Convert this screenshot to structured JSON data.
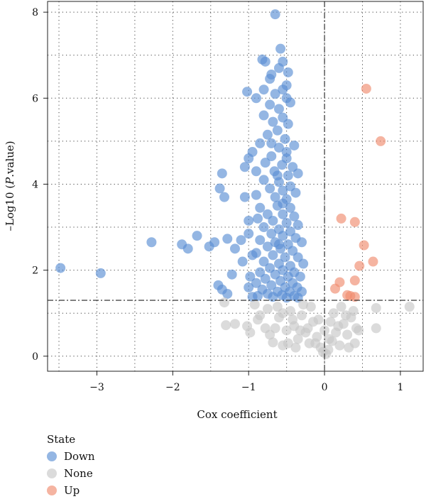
{
  "chart_data": {
    "type": "scatter",
    "title": "",
    "xlabel": "Cox coefficient",
    "ylabel_prefix": "–Log10 (",
    "ylabel_italic": "P",
    "ylabel_suffix": ".value)",
    "xlim": [
      -3.65,
      1.3
    ],
    "ylim": [
      -0.35,
      8.25
    ],
    "xticks": [
      -3,
      -2,
      -1,
      0,
      1
    ],
    "yticks": [
      0,
      2,
      4,
      6,
      8
    ],
    "xtick_labels": [
      "−3",
      "−2",
      "−1",
      "0",
      "1"
    ],
    "ytick_labels": [
      "0",
      "2",
      "4",
      "6",
      "8"
    ],
    "grid": "dotted",
    "threshold_y": 1.3,
    "threshold_x": 0,
    "legend_title": "State",
    "legend_position": "bottom-left",
    "series": [
      {
        "name": "Down",
        "color": "#5b8fd4",
        "points": [
          [
            -0.65,
            7.95
          ],
          [
            -0.58,
            7.15
          ],
          [
            -0.55,
            6.85
          ],
          [
            -0.82,
            6.9
          ],
          [
            -0.78,
            6.85
          ],
          [
            -0.6,
            6.7
          ],
          [
            -0.7,
            6.55
          ],
          [
            -0.48,
            6.6
          ],
          [
            -0.72,
            6.45
          ],
          [
            -0.5,
            6.3
          ],
          [
            -1.02,
            6.15
          ],
          [
            -0.8,
            6.2
          ],
          [
            -0.65,
            6.1
          ],
          [
            -0.5,
            6.0
          ],
          [
            -0.55,
            6.2
          ],
          [
            -0.9,
            6.0
          ],
          [
            -0.72,
            5.85
          ],
          [
            -0.6,
            5.75
          ],
          [
            -0.45,
            5.9
          ],
          [
            -0.8,
            5.6
          ],
          [
            -0.55,
            5.55
          ],
          [
            -0.68,
            5.45
          ],
          [
            -0.48,
            5.4
          ],
          [
            -0.62,
            5.25
          ],
          [
            -0.75,
            5.15
          ],
          [
            -0.52,
            5.05
          ],
          [
            -0.85,
            4.95
          ],
          [
            -0.4,
            4.9
          ],
          [
            -0.6,
            4.85
          ],
          [
            -0.95,
            4.75
          ],
          [
            -0.7,
            4.65
          ],
          [
            -0.5,
            4.6
          ],
          [
            -0.78,
            4.5
          ],
          [
            -0.56,
            4.45
          ],
          [
            -0.42,
            4.4
          ],
          [
            -1.0,
            4.6
          ],
          [
            -1.05,
            4.4
          ],
          [
            -0.9,
            4.3
          ],
          [
            -0.66,
            4.3
          ],
          [
            -0.48,
            4.2
          ],
          [
            -0.35,
            4.25
          ],
          [
            -0.8,
            4.1
          ],
          [
            -0.6,
            4.05
          ],
          [
            -0.45,
            3.95
          ],
          [
            -0.72,
            3.9
          ],
          [
            -0.55,
            3.85
          ],
          [
            -0.38,
            3.8
          ],
          [
            -0.9,
            3.75
          ],
          [
            -0.65,
            3.7
          ],
          [
            -0.5,
            3.65
          ],
          [
            -1.05,
            3.7
          ],
          [
            -1.35,
            4.25
          ],
          [
            -1.38,
            3.9
          ],
          [
            -1.32,
            3.7
          ],
          [
            -0.85,
            3.45
          ],
          [
            -0.62,
            3.5
          ],
          [
            -0.45,
            3.45
          ],
          [
            -0.75,
            3.3
          ],
          [
            -0.55,
            3.3
          ],
          [
            -0.4,
            3.25
          ],
          [
            -0.88,
            3.2
          ],
          [
            -0.68,
            3.15
          ],
          [
            -0.5,
            3.1
          ],
          [
            -0.35,
            3.05
          ],
          [
            -1.0,
            3.15
          ],
          [
            -0.8,
            3.0
          ],
          [
            -0.6,
            2.95
          ],
          [
            -0.45,
            2.9
          ],
          [
            -0.7,
            2.85
          ],
          [
            -1.0,
            2.85
          ],
          [
            -0.55,
            2.8
          ],
          [
            -0.38,
            2.75
          ],
          [
            -0.85,
            2.7
          ],
          [
            -0.65,
            2.65
          ],
          [
            -0.48,
            2.6
          ],
          [
            -0.3,
            2.65
          ],
          [
            -1.1,
            2.7
          ],
          [
            -0.75,
            2.55
          ],
          [
            -0.58,
            2.5
          ],
          [
            -0.42,
            2.45
          ],
          [
            -0.9,
            2.4
          ],
          [
            -0.68,
            2.35
          ],
          [
            -0.52,
            2.3
          ],
          [
            -0.35,
            2.3
          ],
          [
            -0.8,
            2.2
          ],
          [
            -0.6,
            2.15
          ],
          [
            -0.45,
            2.1
          ],
          [
            -0.28,
            2.15
          ],
          [
            -0.95,
            2.35
          ],
          [
            -0.72,
            2.05
          ],
          [
            -0.55,
            2.0
          ],
          [
            -0.4,
            1.95
          ],
          [
            -0.85,
            1.95
          ],
          [
            -0.65,
            1.9
          ],
          [
            -0.48,
            1.85
          ],
          [
            -0.32,
            1.85
          ],
          [
            -0.78,
            1.8
          ],
          [
            -0.58,
            1.75
          ],
          [
            -0.42,
            1.7
          ],
          [
            -0.9,
            1.7
          ],
          [
            -0.7,
            1.65
          ],
          [
            -0.52,
            1.6
          ],
          [
            -0.36,
            1.6
          ],
          [
            -0.82,
            1.55
          ],
          [
            -0.62,
            1.5
          ],
          [
            -0.46,
            1.5
          ],
          [
            -0.3,
            1.5
          ],
          [
            -0.75,
            1.45
          ],
          [
            -0.56,
            1.42
          ],
          [
            -0.4,
            1.4
          ],
          [
            -0.88,
            1.4
          ],
          [
            -0.68,
            1.38
          ],
          [
            -0.5,
            1.36
          ],
          [
            -0.35,
            1.36
          ],
          [
            -0.95,
            1.38
          ],
          [
            -0.6,
            2.6
          ],
          [
            -0.55,
            3.55
          ],
          [
            -0.5,
            4.75
          ],
          [
            -0.7,
            4.95
          ],
          [
            -0.62,
            4.2
          ],
          [
            -3.48,
            2.05
          ],
          [
            -2.95,
            1.93
          ],
          [
            -2.28,
            2.65
          ],
          [
            -1.88,
            2.6
          ],
          [
            -1.8,
            2.5
          ],
          [
            -1.68,
            2.8
          ],
          [
            -1.52,
            2.55
          ],
          [
            -1.45,
            2.65
          ],
          [
            -1.28,
            2.73
          ],
          [
            -1.18,
            2.5
          ],
          [
            -1.22,
            1.9
          ],
          [
            -1.4,
            1.65
          ],
          [
            -1.35,
            1.55
          ],
          [
            -1.28,
            1.45
          ],
          [
            -1.08,
            2.2
          ],
          [
            -1.0,
            1.6
          ],
          [
            -0.98,
            1.85
          ]
        ]
      },
      {
        "name": "None",
        "color": "#c8c8c8",
        "points": [
          [
            -1.32,
            1.25
          ],
          [
            -1.3,
            0.72
          ],
          [
            -1.18,
            0.75
          ],
          [
            -1.02,
            0.7
          ],
          [
            -0.98,
            0.55
          ],
          [
            -0.92,
            1.2
          ],
          [
            -0.85,
            0.95
          ],
          [
            -0.72,
            0.5
          ],
          [
            -0.68,
            0.32
          ],
          [
            -0.6,
            0.9
          ],
          [
            -0.55,
            0.25
          ],
          [
            -0.5,
            0.6
          ],
          [
            -0.45,
            1.05
          ],
          [
            -0.4,
            0.7
          ],
          [
            -0.35,
            0.4
          ],
          [
            -0.3,
            0.95
          ],
          [
            -0.25,
            0.55
          ],
          [
            -0.2,
            0.3
          ],
          [
            -0.15,
            0.8
          ],
          [
            -0.1,
            0.45
          ],
          [
            -0.05,
            0.2
          ],
          [
            -0.02,
            0.1
          ],
          [
            0.02,
            0.05
          ],
          [
            0.05,
            0.15
          ],
          [
            0.1,
            0.35
          ],
          [
            0.15,
            0.55
          ],
          [
            0.2,
            0.25
          ],
          [
            0.25,
            0.75
          ],
          [
            0.3,
            0.5
          ],
          [
            0.35,
            0.9
          ],
          [
            0.4,
            0.3
          ],
          [
            0.45,
            0.6
          ],
          [
            0.12,
            1.0
          ],
          [
            0.22,
            1.15
          ],
          [
            0.28,
            0.95
          ],
          [
            -0.62,
            1.15
          ],
          [
            -0.75,
            1.1
          ],
          [
            -0.88,
            0.85
          ],
          [
            -0.42,
            0.85
          ],
          [
            -0.28,
            1.2
          ],
          [
            -0.18,
            1.15
          ],
          [
            -0.08,
            0.85
          ],
          [
            0.0,
            0.6
          ],
          [
            0.06,
            0.4
          ],
          [
            0.18,
            0.7
          ],
          [
            0.32,
            0.2
          ],
          [
            0.42,
            0.65
          ],
          [
            0.68,
            1.12
          ],
          [
            0.68,
            0.65
          ],
          [
            1.12,
            1.15
          ],
          [
            -0.65,
            0.65
          ],
          [
            -0.55,
            1.0
          ],
          [
            -0.38,
            0.2
          ],
          [
            -0.22,
            0.65
          ],
          [
            -0.12,
            0.3
          ],
          [
            0.08,
            0.8
          ],
          [
            -0.48,
            0.3
          ],
          [
            -0.78,
            0.65
          ],
          [
            0.38,
            1.05
          ],
          [
            -0.32,
            0.6
          ]
        ]
      },
      {
        "name": "Up",
        "color": "#f08c6e",
        "points": [
          [
            0.55,
            6.22
          ],
          [
            0.74,
            5.0
          ],
          [
            0.22,
            3.2
          ],
          [
            0.4,
            3.12
          ],
          [
            0.52,
            2.58
          ],
          [
            0.64,
            2.2
          ],
          [
            0.46,
            2.1
          ],
          [
            0.2,
            1.72
          ],
          [
            0.14,
            1.57
          ],
          [
            0.4,
            1.76
          ],
          [
            0.3,
            1.42
          ],
          [
            0.34,
            1.4
          ],
          [
            0.4,
            1.38
          ]
        ]
      }
    ]
  }
}
